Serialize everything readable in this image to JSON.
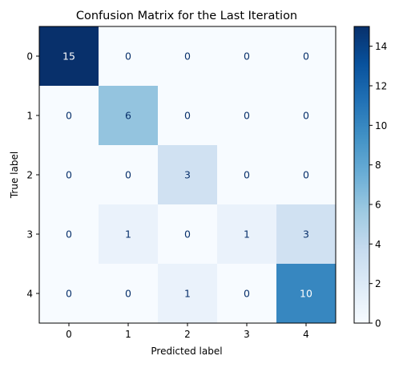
{
  "chart_data": {
    "type": "heatmap",
    "title": "Confusion Matrix for the Last Iteration",
    "xlabel": "Predicted label",
    "ylabel": "True label",
    "x_categories": [
      "0",
      "1",
      "2",
      "3",
      "4"
    ],
    "y_categories": [
      "0",
      "1",
      "2",
      "3",
      "4"
    ],
    "matrix": [
      [
        15,
        0,
        0,
        0,
        0
      ],
      [
        0,
        6,
        0,
        0,
        0
      ],
      [
        0,
        0,
        3,
        0,
        0
      ],
      [
        0,
        1,
        0,
        1,
        3
      ],
      [
        0,
        0,
        1,
        0,
        10
      ]
    ],
    "colormap": "Blues",
    "color_low": "#f7fbff",
    "color_high": "#08306b",
    "value_range": [
      0,
      15
    ],
    "colorbar_ticks": [
      "0",
      "2",
      "4",
      "6",
      "8",
      "10",
      "12",
      "14"
    ],
    "text_color_dark_cells": "#ffffff",
    "text_color_light_cells": "#08306b"
  }
}
